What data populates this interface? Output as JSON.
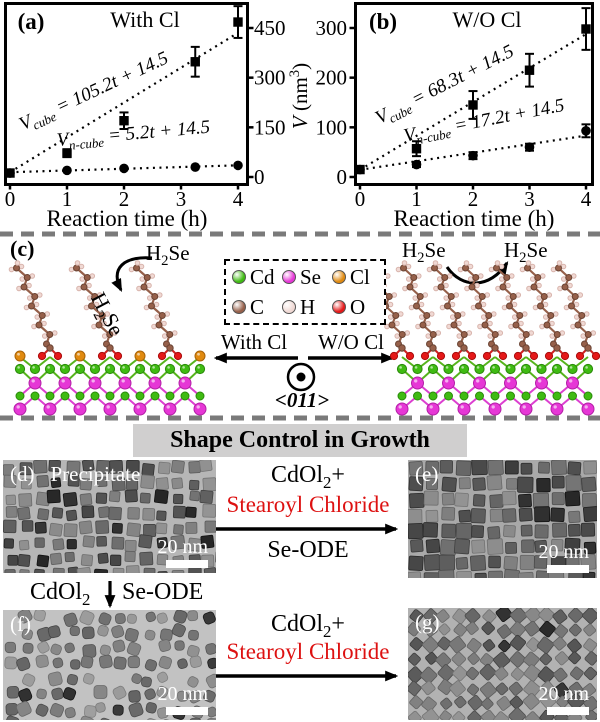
{
  "figure": {
    "section_growth_banner": "Shape Control in Growth"
  },
  "chart_data": [
    {
      "type": "scatter",
      "panel_label": "(a)",
      "title": "With Cl",
      "xlabel": "Reaction time (h)",
      "x_ticks": [
        "0",
        "1",
        "2",
        "3",
        "4"
      ],
      "y_ticks": [
        "0",
        "150",
        "300",
        "450"
      ],
      "xlim": [
        0,
        4.2
      ],
      "ylim": [
        0,
        525
      ],
      "grid": false,
      "legend_position": "none",
      "series": [
        {
          "name": "V_cube",
          "marker": "square",
          "x": [
            0,
            1,
            2,
            3.25,
            4
          ],
          "y": [
            12,
            72,
            170,
            348,
            468
          ],
          "yerr": [
            6,
            12,
            25,
            45,
            48
          ],
          "fit": {
            "slope": 105.2,
            "intercept": 14.5
          },
          "eq": {
            "var": "V",
            "sub": "cube",
            "expr": " = 105.2t + 14.5"
          }
        },
        {
          "name": "V_n-cube",
          "marker": "circle",
          "x": [
            0,
            1,
            2,
            3.25,
            4
          ],
          "y": [
            12,
            20,
            26,
            30,
            35
          ],
          "yerr": [
            6,
            0,
            0,
            0,
            3
          ],
          "fit": {
            "slope": 5.2,
            "intercept": 14.5
          },
          "eq": {
            "var": "V",
            "sub": "n-cube",
            "expr": " = 5.2t + 14.5"
          }
        }
      ]
    },
    {
      "type": "scatter",
      "panel_label": "(b)",
      "title": "W/O Cl",
      "xlabel": "Reaction time (h)",
      "x_ticks": [
        "0",
        "1",
        "2",
        "3",
        "4"
      ],
      "y_ticks": [
        "0",
        "100",
        "200",
        "300"
      ],
      "xlim": [
        0,
        4.2
      ],
      "ylim": [
        0,
        350
      ],
      "grid": false,
      "legend_position": "none",
      "series": [
        {
          "name": "V_cube",
          "marker": "square",
          "x": [
            0,
            1,
            2,
            3,
            4
          ],
          "y": [
            15,
            57,
            145,
            215,
            298
          ],
          "yerr": [
            6,
            15,
            28,
            33,
            42
          ],
          "fit": {
            "slope": 68.3,
            "intercept": 14.5
          },
          "eq": {
            "var": "V",
            "sub": "cube",
            "expr": " = 68.3t + 14.5"
          }
        },
        {
          "name": "V_n-cube",
          "marker": "circle",
          "x": [
            0,
            1,
            2,
            3,
            4
          ],
          "y": [
            15,
            25,
            43,
            60,
            93
          ],
          "yerr": [
            6,
            5,
            7,
            7,
            13
          ],
          "fit": {
            "slope": 17.2,
            "intercept": 14.5
          },
          "eq": {
            "var": "V",
            "sub": "n-cube",
            "expr": " = 17.2t + 14.5"
          }
        }
      ]
    }
  ],
  "shared_axis": {
    "var": "V",
    "unit_pre": " (nm",
    "sup": "3",
    "unit_post": ")"
  },
  "panel_c": {
    "label": "(c)",
    "h2se": {
      "pre": "H",
      "sub": "2",
      "post": "Se"
    },
    "legend": {
      "items": [
        {
          "symbol": "Cd",
          "color": "#3fbb12"
        },
        {
          "symbol": "Se",
          "color": "#e637d6"
        },
        {
          "symbol": "Cl",
          "color": "#e08a10"
        },
        {
          "symbol": "C",
          "color": "#96604a"
        },
        {
          "symbol": "H",
          "color": "#f0d9d4"
        },
        {
          "symbol": "O",
          "color": "#e51818"
        }
      ]
    },
    "with_cl": "With Cl",
    "wo_cl": "W/O Cl",
    "direction": "<011>"
  },
  "tem_panels": [
    {
      "label": "(d)",
      "caption": "Precipitate",
      "scale": "20 nm"
    },
    {
      "label": "(e)",
      "caption": "",
      "scale": "20 nm"
    },
    {
      "label": "(f)",
      "caption": "",
      "scale": "20 nm"
    },
    {
      "label": "(g)",
      "caption": "",
      "scale": "20 nm"
    }
  ],
  "reactions": {
    "r1": {
      "l1_pre": "CdOl",
      "l1_sub": "2",
      "l1_post": "+",
      "l2": "Stearoyl Chloride",
      "l3": "Se-ODE"
    },
    "r2": {
      "l1_pre": "CdOl",
      "l1_sub": "2",
      "l1_post": "+",
      "l2": "Stearoyl Chloride"
    },
    "precip": {
      "left_pre": "CdOl",
      "left_sub": "2",
      "right": "Se-ODE"
    }
  },
  "colors": {
    "accent_red": "#dd1111",
    "separator_gray": "#7a7a7a",
    "banner_bg": "#d0cfcf"
  }
}
